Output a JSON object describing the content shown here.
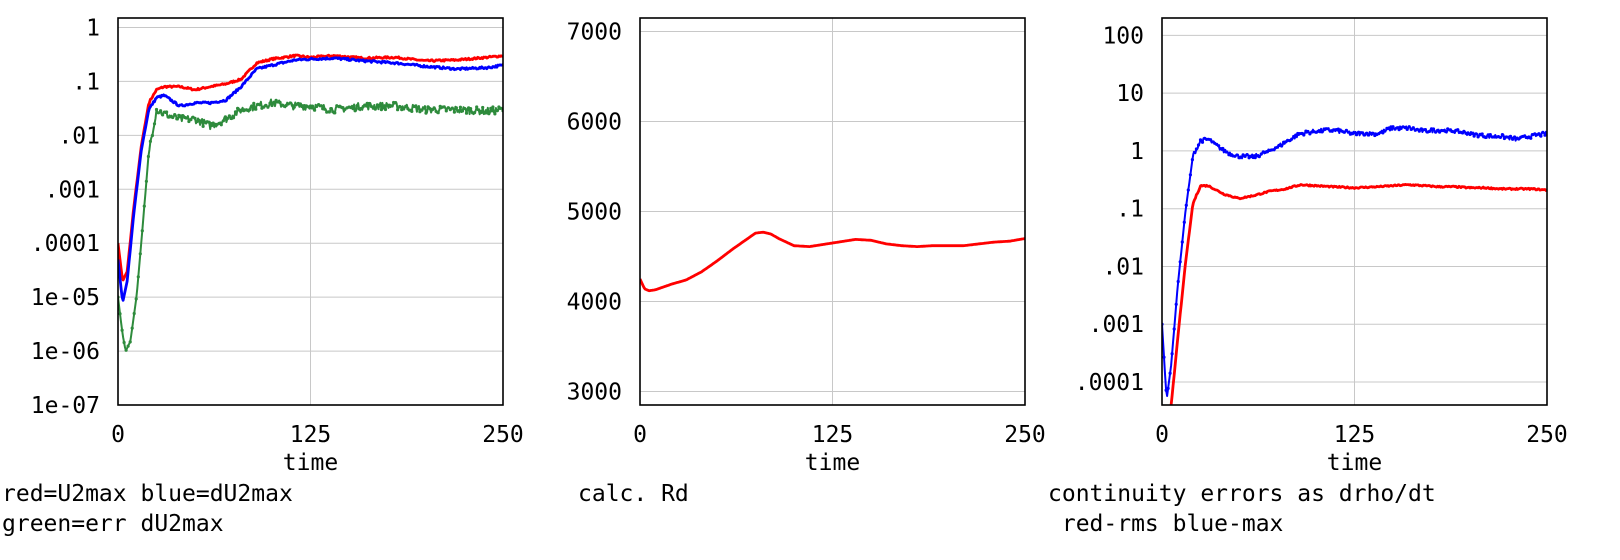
{
  "chart_data": [
    {
      "type": "line",
      "xlabel": "time",
      "x_ticks": [
        "0",
        "125",
        "250"
      ],
      "xlim": [
        0,
        250
      ],
      "y_scale": "log",
      "ylim": [
        1e-07,
        1.5
      ],
      "y_ticks": [
        {
          "value": 1,
          "label": "1"
        },
        {
          "value": 0.1,
          "label": ".1"
        },
        {
          "value": 0.01,
          "label": ".01"
        },
        {
          "value": 0.001,
          "label": ".001"
        },
        {
          "value": 0.0001,
          "label": ".0001"
        },
        {
          "value": 1e-05,
          "label": "1e-05"
        },
        {
          "value": 1e-06,
          "label": "1e-06"
        },
        {
          "value": 1e-07,
          "label": "1e-07"
        }
      ],
      "grid": true,
      "caption_lines": [
        "red=U2max blue=dU2max",
        "green=err dU2max"
      ],
      "series": [
        {
          "color": "#ff0000",
          "style": "line",
          "noise": 0.07,
          "x": [
            0,
            3,
            6,
            10,
            15,
            20,
            25,
            30,
            40,
            50,
            60,
            70,
            80,
            90,
            100,
            115,
            125,
            140,
            160,
            180,
            200,
            220,
            240,
            250
          ],
          "y": [
            0.0001,
            2e-05,
            3e-05,
            0.0004,
            0.006,
            0.04,
            0.07,
            0.08,
            0.08,
            0.07,
            0.08,
            0.09,
            0.11,
            0.22,
            0.26,
            0.3,
            0.28,
            0.3,
            0.27,
            0.28,
            0.24,
            0.25,
            0.28,
            0.3
          ]
        },
        {
          "color": "#0000ff",
          "style": "line",
          "noise": 0.08,
          "x": [
            0,
            3,
            6,
            10,
            15,
            20,
            25,
            30,
            40,
            50,
            60,
            70,
            80,
            90,
            100,
            115,
            125,
            140,
            160,
            180,
            200,
            220,
            240,
            250
          ],
          "y": [
            5e-05,
            8e-06,
            2e-05,
            0.0003,
            0.005,
            0.03,
            0.05,
            0.055,
            0.035,
            0.04,
            0.04,
            0.045,
            0.08,
            0.17,
            0.2,
            0.25,
            0.26,
            0.27,
            0.24,
            0.22,
            0.19,
            0.17,
            0.18,
            0.2
          ]
        },
        {
          "color": "#2e8b3c",
          "style": "markers",
          "noise": 0.28,
          "x": [
            0,
            3,
            5,
            8,
            12,
            16,
            20,
            25,
            30,
            40,
            50,
            60,
            70,
            80,
            90,
            100,
            115,
            125,
            140,
            160,
            180,
            200,
            220,
            240,
            250
          ],
          "y": [
            1e-05,
            2e-06,
            1e-06,
            1.5e-06,
            1e-05,
            0.0002,
            0.005,
            0.03,
            0.025,
            0.02,
            0.02,
            0.015,
            0.02,
            0.03,
            0.035,
            0.04,
            0.035,
            0.035,
            0.03,
            0.035,
            0.035,
            0.03,
            0.03,
            0.028,
            0.03
          ]
        }
      ]
    },
    {
      "type": "line",
      "xlabel": "time",
      "x_ticks": [
        "0",
        "125",
        "250"
      ],
      "xlim": [
        0,
        250
      ],
      "y_scale": "linear",
      "ylim": [
        2850,
        7150
      ],
      "y_ticks": [
        {
          "value": 7000,
          "label": "7000"
        },
        {
          "value": 6000,
          "label": "6000"
        },
        {
          "value": 5000,
          "label": "5000"
        },
        {
          "value": 4000,
          "label": "4000"
        },
        {
          "value": 3000,
          "label": "3000"
        }
      ],
      "grid": true,
      "caption_lines": [
        "calc. Rd"
      ],
      "series": [
        {
          "color": "#ff0000",
          "style": "line",
          "noise": 0,
          "x": [
            0,
            3,
            6,
            10,
            20,
            30,
            40,
            50,
            60,
            70,
            75,
            80,
            85,
            90,
            100,
            110,
            125,
            140,
            150,
            160,
            170,
            180,
            190,
            200,
            210,
            220,
            230,
            240,
            250
          ],
          "y": [
            4250,
            4140,
            4120,
            4130,
            4190,
            4240,
            4330,
            4450,
            4580,
            4700,
            4760,
            4770,
            4750,
            4700,
            4620,
            4610,
            4650,
            4690,
            4680,
            4640,
            4620,
            4610,
            4620,
            4620,
            4620,
            4640,
            4660,
            4670,
            4700
          ]
        }
      ]
    },
    {
      "type": "line",
      "xlabel": "time",
      "x_ticks": [
        "0",
        "125",
        "250"
      ],
      "xlim": [
        0,
        250
      ],
      "y_scale": "log",
      "ylim": [
        4e-05,
        200
      ],
      "y_ticks": [
        {
          "value": 100,
          "label": "100"
        },
        {
          "value": 10,
          "label": "10"
        },
        {
          "value": 1,
          "label": "1"
        },
        {
          "value": 0.1,
          "label": ".1"
        },
        {
          "value": 0.01,
          "label": ".01"
        },
        {
          "value": 0.001,
          "label": ".001"
        },
        {
          "value": 0.0001,
          "label": ".0001"
        }
      ],
      "grid": true,
      "caption_lines": [
        "continuity errors as drho/dt",
        " red-rms blue-max"
      ],
      "series": [
        {
          "color": "#0000ff",
          "style": "markers",
          "noise": 0.14,
          "x": [
            0,
            3,
            6,
            10,
            15,
            20,
            25,
            30,
            40,
            50,
            60,
            70,
            80,
            90,
            100,
            110,
            125,
            140,
            150,
            160,
            170,
            180,
            190,
            200,
            210,
            220,
            230,
            240,
            250
          ],
          "y": [
            0.001,
            5e-05,
            0.0002,
            0.004,
            0.08,
            0.8,
            1.5,
            1.6,
            1.0,
            0.8,
            0.8,
            1.0,
            1.4,
            2.0,
            2.2,
            2.3,
            2.0,
            2.0,
            2.5,
            2.5,
            2.2,
            2.3,
            2.2,
            2.0,
            1.8,
            1.8,
            1.6,
            1.8,
            2.0
          ]
        },
        {
          "color": "#ff0000",
          "style": "line",
          "noise": 0.05,
          "x": [
            0,
            3,
            6,
            10,
            15,
            20,
            25,
            30,
            40,
            50,
            60,
            70,
            80,
            90,
            100,
            110,
            125,
            140,
            150,
            160,
            170,
            180,
            190,
            200,
            210,
            220,
            230,
            240,
            250
          ],
          "y": [
            3e-05,
            3e-05,
            4e-05,
            0.0005,
            0.01,
            0.12,
            0.25,
            0.25,
            0.18,
            0.15,
            0.17,
            0.2,
            0.22,
            0.26,
            0.25,
            0.24,
            0.23,
            0.24,
            0.25,
            0.26,
            0.25,
            0.24,
            0.24,
            0.23,
            0.23,
            0.22,
            0.22,
            0.22,
            0.21
          ]
        }
      ]
    }
  ]
}
